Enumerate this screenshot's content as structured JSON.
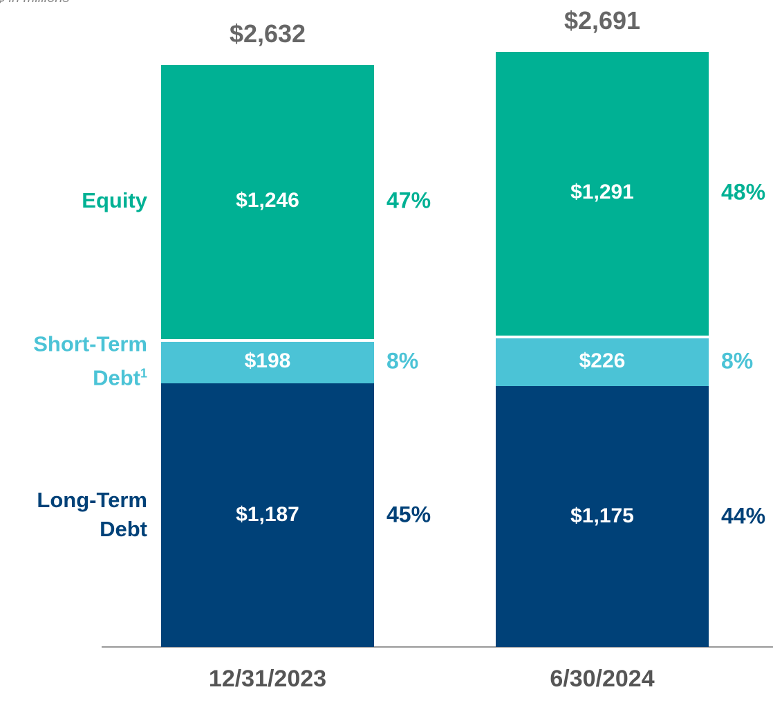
{
  "chart_data": {
    "type": "stacked_bar",
    "subtitle": "$ in millions",
    "categories": [
      "12/31/2023",
      "6/30/2024"
    ],
    "series": [
      {
        "name": "Long-Term Debt",
        "color": "#004178",
        "values": [
          1187,
          1175
        ],
        "value_labels": [
          "$1,187",
          "$1,175"
        ],
        "shares": [
          45,
          44
        ],
        "share_labels": [
          "45%",
          "44%"
        ]
      },
      {
        "name": "Short-Term Debt",
        "footnote": "1",
        "color": "#4bc3d6",
        "values": [
          198,
          226
        ],
        "value_labels": [
          "$198",
          "$226"
        ],
        "shares": [
          8,
          8
        ],
        "share_labels": [
          "8%",
          "8%"
        ]
      },
      {
        "name": "Equity",
        "color": "#00b194",
        "values": [
          1246,
          1291
        ],
        "value_labels": [
          "$1,246",
          "$1,291"
        ],
        "shares": [
          47,
          48
        ],
        "share_labels": [
          "47%",
          "48%"
        ]
      }
    ],
    "totals": [
      2632,
      2691
    ],
    "total_labels": [
      "$2,632",
      "$2,691"
    ],
    "ylim": [
      0,
      2900
    ]
  }
}
